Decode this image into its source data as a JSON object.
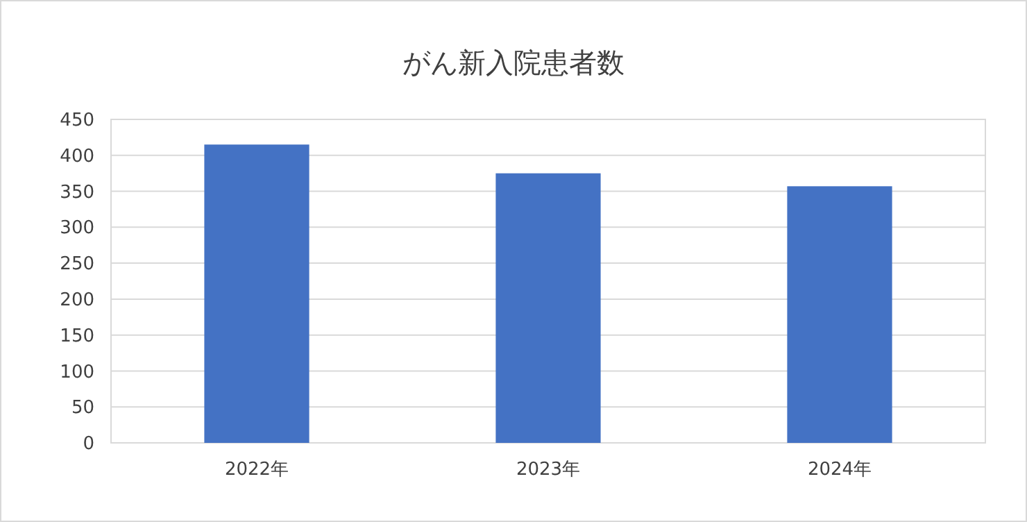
{
  "chart_data": {
    "type": "bar",
    "title": "がん新入院患者数",
    "categories": [
      "2022年",
      "2023年",
      "2024年"
    ],
    "values": [
      415,
      375,
      357
    ],
    "color": "#4472c4",
    "ylim": [
      0,
      450
    ],
    "yticks": [
      0,
      50,
      100,
      150,
      200,
      250,
      300,
      350,
      400,
      450
    ],
    "grid": "y"
  }
}
